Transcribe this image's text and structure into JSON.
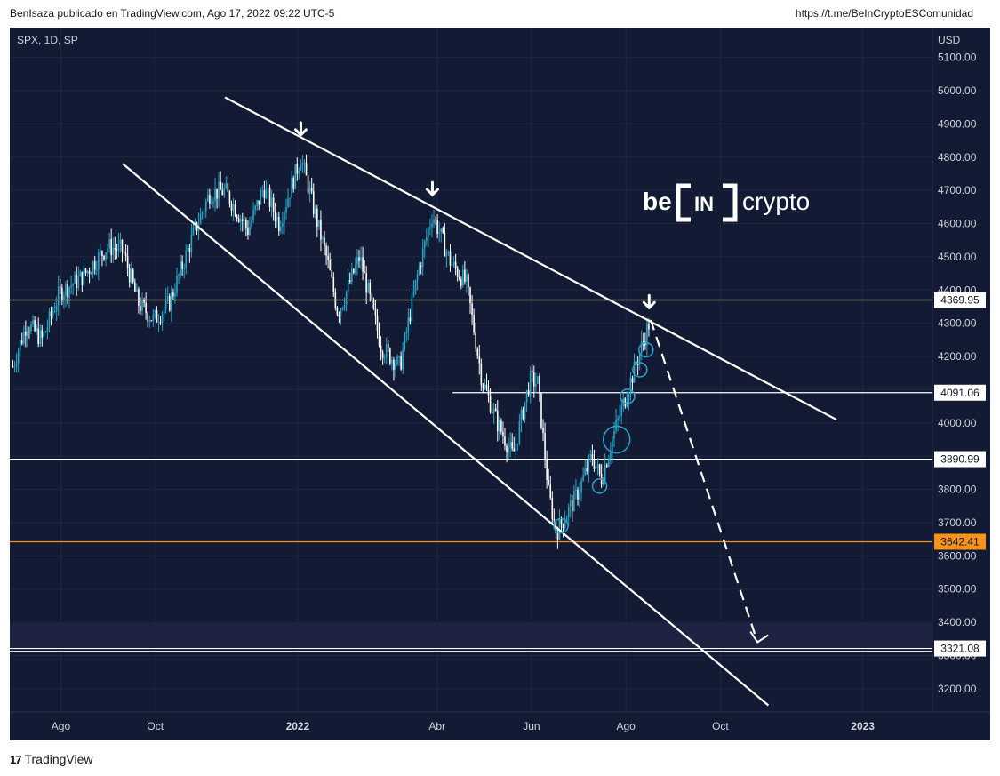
{
  "header": {
    "publisher": "BenIsaza publicado en TradingView.com, Ago 17, 2022 09:22 UTC-5",
    "link": "https://t.me/BeInCryptoESComunidad"
  },
  "footer": {
    "logo_mark": "17",
    "brand": "TradingView"
  },
  "watermark": {
    "left": "be",
    "center": "IN",
    "right": "crypto"
  },
  "chart_data": {
    "type": "candlestick",
    "symbol_label": "SPX, 1D, SP",
    "currency": "USD",
    "ylim": [
      3130,
      5190
    ],
    "y_ticks": [
      3200,
      3300,
      3400,
      3500,
      3600,
      3700,
      3800,
      3900,
      4000,
      4100,
      4200,
      4300,
      4400,
      4500,
      4600,
      4700,
      4800,
      4900,
      5000,
      5100
    ],
    "x_ticks": [
      "Ago",
      "Oct",
      "2022",
      "Abr",
      "Jun",
      "Ago",
      "Oct",
      "2023"
    ],
    "price_labels": [
      {
        "value": 4369.95,
        "label": "4369.95",
        "color": "#ffffff"
      },
      {
        "value": 4091.06,
        "label": "4091.06",
        "color": "#ffffff"
      },
      {
        "value": 3890.99,
        "label": "3890.99",
        "color": "#ffffff"
      },
      {
        "value": 3642.41,
        "label": "3642.41",
        "color": "#f7931a"
      },
      {
        "value": 3321.08,
        "label": "3321.08",
        "color": "#ffffff"
      }
    ],
    "zone": [
      3321.08,
      3400
    ],
    "price_path": [
      [
        "2021-07-01",
        4170
      ],
      [
        "2021-07-10",
        4300
      ],
      [
        "2021-07-20",
        4250
      ],
      [
        "2021-07-31",
        4390
      ],
      [
        "2021-08-15",
        4440
      ],
      [
        "2021-08-31",
        4530
      ],
      [
        "2021-09-10",
        4520
      ],
      [
        "2021-09-20",
        4360
      ],
      [
        "2021-09-30",
        4310
      ],
      [
        "2021-10-10",
        4360
      ],
      [
        "2021-10-25",
        4560
      ],
      [
        "2021-11-05",
        4690
      ],
      [
        "2021-11-15",
        4700
      ],
      [
        "2021-11-30",
        4580
      ],
      [
        "2021-12-10",
        4710
      ],
      [
        "2021-12-20",
        4600
      ],
      [
        "2022-01-03",
        4800
      ],
      [
        "2022-01-10",
        4670
      ],
      [
        "2022-01-20",
        4490
      ],
      [
        "2022-01-27",
        4330
      ],
      [
        "2022-02-10",
        4500
      ],
      [
        "2022-02-24",
        4230
      ],
      [
        "2022-03-08",
        4170
      ],
      [
        "2022-03-20",
        4460
      ],
      [
        "2022-03-29",
        4630
      ],
      [
        "2022-04-10",
        4480
      ],
      [
        "2022-04-20",
        4420
      ],
      [
        "2022-04-30",
        4130
      ],
      [
        "2022-05-10",
        4000
      ],
      [
        "2022-05-20",
        3900
      ],
      [
        "2022-05-31",
        4130
      ],
      [
        "2022-06-05",
        4120
      ],
      [
        "2022-06-12",
        3790
      ],
      [
        "2022-06-17",
        3670
      ],
      [
        "2022-06-30",
        3780
      ],
      [
        "2022-07-10",
        3900
      ],
      [
        "2022-07-16",
        3830
      ],
      [
        "2022-07-25",
        3980
      ],
      [
        "2022-08-05",
        4140
      ],
      [
        "2022-08-16",
        4300
      ]
    ],
    "trendlines": [
      {
        "name": "upper",
        "from": [
          "2021-11-15",
          4980
        ],
        "to": [
          "2022-12-15",
          4010
        ]
      },
      {
        "name": "lower",
        "from": [
          "2021-09-10",
          4780
        ],
        "to": [
          "2022-11-01",
          3150
        ]
      }
    ],
    "projection": {
      "from": [
        "2022-08-17",
        4310
      ],
      "to": [
        "2022-10-25",
        3340
      ]
    },
    "peak_arrows": [
      [
        "2022-01-03",
        4840
      ],
      [
        "2022-03-29",
        4660
      ],
      [
        "2022-08-16",
        4320
      ]
    ],
    "circles": [
      [
        "2022-06-20",
        3690
      ],
      [
        "2022-07-15",
        3810
      ],
      [
        "2022-07-26",
        3950
      ],
      [
        "2022-08-02",
        4080
      ],
      [
        "2022-08-10",
        4160
      ],
      [
        "2022-08-14",
        4220
      ]
    ],
    "grid": true
  }
}
